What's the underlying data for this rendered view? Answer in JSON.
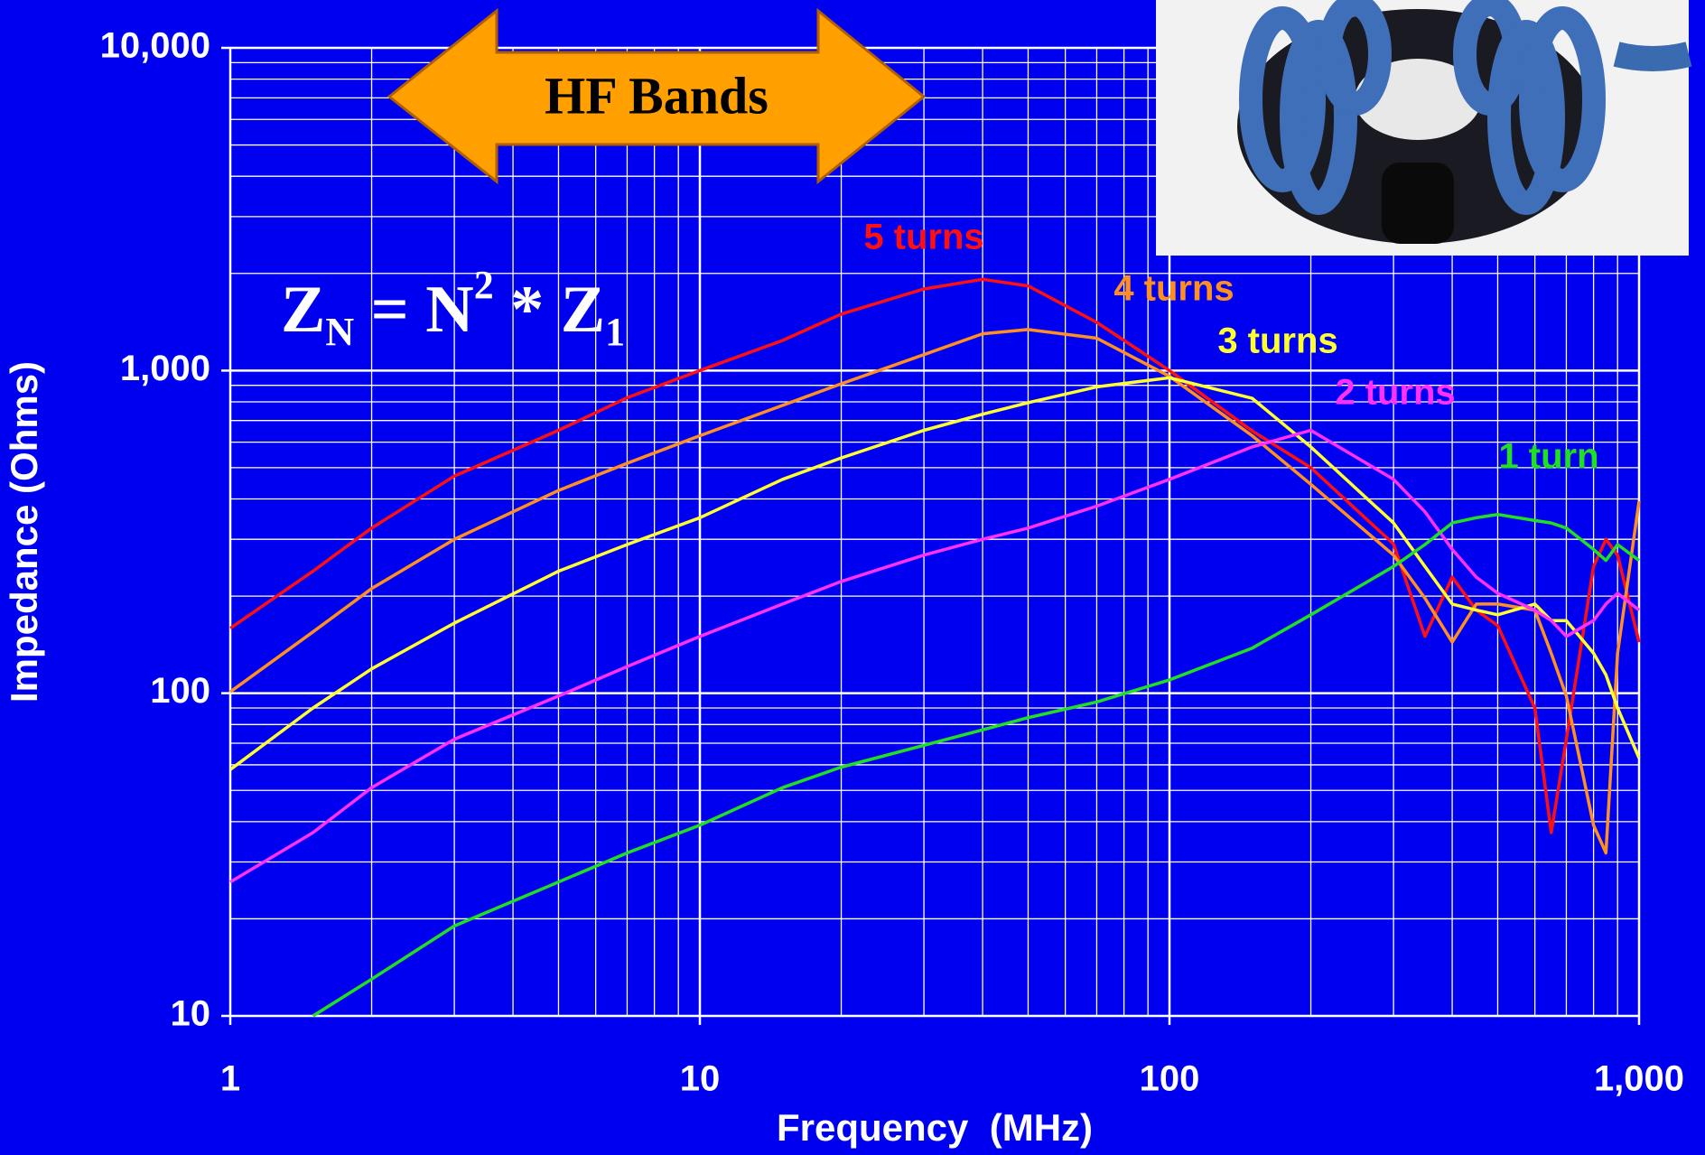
{
  "chart_data": {
    "type": "line",
    "x_label": "Frequency  (MHz)",
    "y_label": "Impedance (Ohms)",
    "log_x": true,
    "log_y": true,
    "grid": true,
    "xlim": [
      1,
      1000
    ],
    "ylim": [
      10,
      10000
    ],
    "xticks": [
      1,
      10,
      100,
      {
        "value": 1000,
        "label": "1,000"
      }
    ],
    "yticks": [
      10,
      100,
      {
        "value": 1000,
        "label": "1,000"
      },
      {
        "value": 10000,
        "label": "10,000"
      }
    ],
    "xminor": [
      2,
      3,
      4,
      5,
      6,
      7,
      8,
      9,
      20,
      30,
      40,
      50,
      60,
      70,
      80,
      90,
      200,
      300,
      400,
      500,
      600,
      700,
      800,
      900
    ],
    "yminor": [
      20,
      30,
      40,
      50,
      60,
      70,
      80,
      90,
      200,
      300,
      400,
      500,
      600,
      700,
      800,
      900,
      2000,
      3000,
      4000,
      5000,
      6000,
      7000,
      8000,
      9000
    ],
    "annotations": {
      "band": "HF Bands",
      "formula": [
        "Z",
        "N",
        " = N",
        "2",
        " * Z",
        "1"
      ]
    },
    "x": [
      1,
      1.5,
      2,
      3,
      5,
      7,
      10,
      15,
      20,
      30,
      40,
      50,
      70,
      100,
      150,
      200,
      300,
      350,
      400,
      450,
      500,
      600,
      650,
      700,
      800,
      850,
      900,
      1000
    ],
    "series": [
      {
        "name": "5 turns",
        "color": "#ff1010",
        "values": [
          159,
          239,
          325,
          471,
          653,
          824,
          1000,
          1240,
          1496,
          1790,
          1918,
          1830,
          1410,
          1000,
          650,
          500,
          290,
          150,
          229,
          181,
          162,
          90,
          37,
          72,
          247,
          300,
          268,
          144
        ]
      },
      {
        "name": "4 turns",
        "color": "#ff9020",
        "values": [
          101,
          155,
          211,
          300,
          425,
          516,
          628,
          780,
          910,
          1120,
          1300,
          1340,
          1260,
          960,
          628,
          444,
          268,
          197,
          144,
          189,
          189,
          181,
          133,
          98,
          39,
          32,
          133,
          394
        ]
      },
      {
        "name": "3 turns",
        "color": "#ffff30",
        "values": [
          58,
          90,
          119,
          165,
          239,
          289,
          350,
          460,
          536,
          653,
          732,
          795,
          890,
          950,
          820,
          580,
          337,
          247,
          189,
          181,
          175,
          189,
          168,
          168,
          133,
          114,
          90,
          63
        ]
      },
      {
        "name": "2 turns",
        "color": "#ff30ff",
        "values": [
          26,
          37,
          51,
          72,
          98,
          121,
          150,
          189,
          222,
          268,
          300,
          325,
          380,
          460,
          580,
          653,
          460,
          365,
          279,
          229,
          204,
          181,
          168,
          150,
          168,
          189,
          204,
          181
        ]
      },
      {
        "name": "1 turn",
        "color": "#20e020",
        "values": [
          null,
          10,
          13,
          19,
          26,
          32,
          39,
          51,
          59,
          69,
          77,
          84,
          94,
          110,
          138,
          175,
          247,
          289,
          337,
          350,
          358,
          343,
          337,
          325,
          279,
          258,
          289,
          258
        ]
      }
    ]
  }
}
